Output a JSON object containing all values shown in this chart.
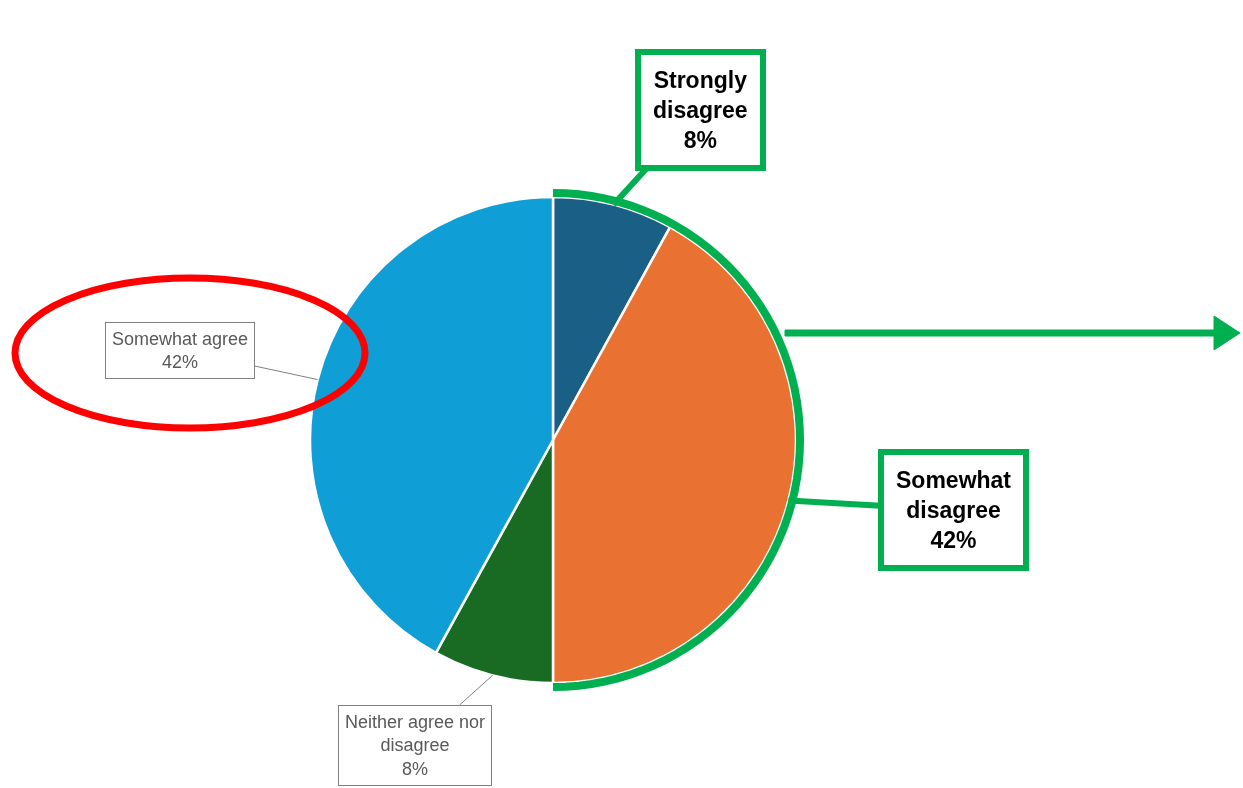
{
  "chart_data": {
    "type": "pie",
    "categories": [
      "Strongly disagree",
      "Somewhat disagree",
      "Neither agree nor disagree",
      "Somewhat agree"
    ],
    "values": [
      8,
      42,
      8,
      42
    ],
    "value_labels": [
      "8%",
      "42%",
      "8%",
      "42%"
    ],
    "colors": [
      "#1a5f86",
      "#e97132",
      "#196b24",
      "#0f9ed5"
    ],
    "legend": false
  }
}
